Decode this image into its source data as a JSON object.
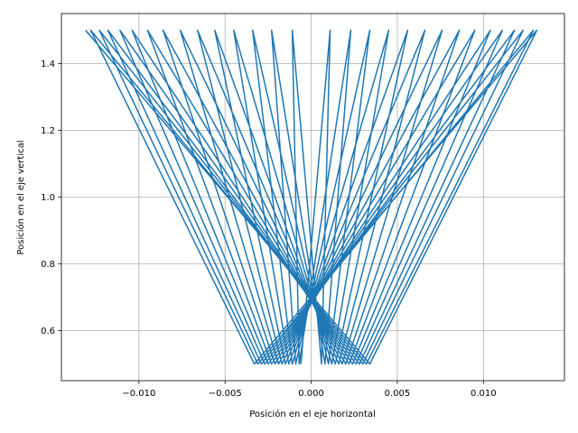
{
  "chart_data": {
    "type": "line",
    "title": "",
    "xlabel": "Posición en el eje horizontal",
    "ylabel": "Posición en el eje vertical",
    "xlim": [
      -0.0145,
      0.0147
    ],
    "ylim": [
      0.45,
      1.55
    ],
    "grid": true,
    "line_color": "#1f77b4",
    "x_ticks": [
      {
        "value": -0.01,
        "label": "−0.010"
      },
      {
        "value": -0.005,
        "label": "−0.005"
      },
      {
        "value": 0.0,
        "label": "0.000"
      },
      {
        "value": 0.005,
        "label": "0.005"
      },
      {
        "value": 0.01,
        "label": "0.010"
      }
    ],
    "y_ticks": [
      {
        "value": 0.6,
        "label": "0.6"
      },
      {
        "value": 0.8,
        "label": "0.8"
      },
      {
        "value": 1.0,
        "label": "1.0"
      },
      {
        "value": 1.2,
        "label": "1.2"
      },
      {
        "value": 1.4,
        "label": "1.4"
      }
    ],
    "series": [
      {
        "trajectory": {
          "y_min": 0.5,
          "y_max": 1.5,
          "top_turning_x": [
            -0.0131,
            0.0131,
            -0.0128,
            0.0129,
            -0.0123,
            0.0123,
            -0.0118,
            0.0118,
            -0.0111,
            0.0111,
            -0.0104,
            0.0104,
            -0.0095,
            0.0095,
            -0.0086,
            0.0086,
            -0.0076,
            0.0076,
            -0.0066,
            0.0066,
            -0.0056,
            0.0056,
            -0.0045,
            0.0045,
            -0.0034,
            0.0034,
            -0.0023,
            0.0023,
            -0.0011,
            0.0011
          ],
          "bottom_half_width": [
            0.0034,
            0.0033,
            0.0032,
            0.0031,
            0.003,
            0.0029,
            0.0028,
            0.0027,
            0.0026,
            0.0025,
            0.0024,
            0.0023,
            0.0022,
            0.0021,
            0.002,
            0.0019,
            0.0018,
            0.0017,
            0.0016,
            0.0015,
            0.0014,
            0.0013,
            0.0012,
            0.0011,
            0.001,
            0.0009,
            0.0008,
            0.0007,
            0.0006
          ]
        }
      }
    ]
  }
}
